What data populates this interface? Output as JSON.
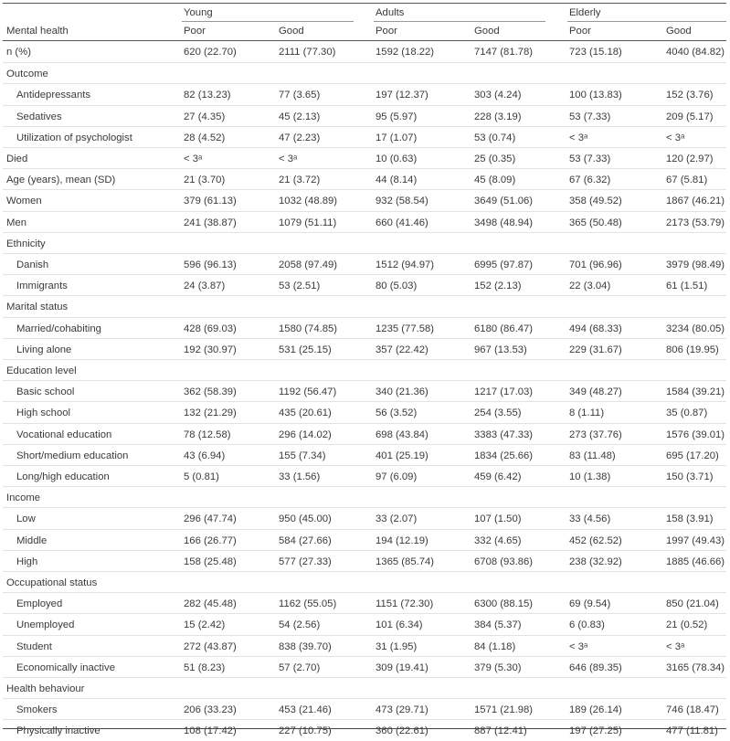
{
  "groups": [
    "Young",
    "Adults",
    "Elderly"
  ],
  "subheaders": [
    "Poor",
    "Good",
    "Poor",
    "Good",
    "Poor",
    "Good"
  ],
  "row_header": "Mental health",
  "footnote_mark": "a",
  "rows": [
    {
      "label": "n (%)",
      "type": "data",
      "cells": [
        "620 (22.70)",
        "2111 (77.30)",
        "1592 (18.22)",
        "7147 (81.78)",
        "723 (15.18)",
        "4040 (84.82)"
      ]
    },
    {
      "label": "Outcome",
      "type": "category",
      "cells": []
    },
    {
      "label": "Antidepressants",
      "type": "sub",
      "cells": [
        "82 (13.23)",
        "77 (3.65)",
        "197 (12.37)",
        "303 (4.24)",
        "100 (13.83)",
        "152 (3.76)"
      ]
    },
    {
      "label": "Sedatives",
      "type": "sub",
      "cells": [
        "27 (4.35)",
        "45 (2.13)",
        "95 (5.97)",
        "228 (3.19)",
        "53 (7.33)",
        "209 (5.17)"
      ]
    },
    {
      "label": "Utilization of psychologist",
      "type": "sub",
      "cells": [
        "28 (4.52)",
        "47 (2.23)",
        "17 (1.07)",
        "53 (0.74)",
        "< 3ᵃ",
        "< 3ᵃ"
      ]
    },
    {
      "label": "Died",
      "type": "data",
      "cells": [
        "< 3ᵃ",
        "< 3ᵃ",
        "10 (0.63)",
        "25 (0.35)",
        "53 (7.33)",
        "120 (2.97)"
      ]
    },
    {
      "label": "Age (years), mean (SD)",
      "type": "data",
      "cells": [
        "21 (3.70)",
        "21 (3.72)",
        "44 (8.14)",
        "45 (8.09)",
        "67 (6.32)",
        "67 (5.81)"
      ]
    },
    {
      "label": "Women",
      "type": "data",
      "cells": [
        "379 (61.13)",
        "1032 (48.89)",
        "932 (58.54)",
        "3649 (51.06)",
        "358 (49.52)",
        "1867 (46.21)"
      ]
    },
    {
      "label": "Men",
      "type": "data",
      "cells": [
        "241 (38.87)",
        "1079 (51.11)",
        "660 (41.46)",
        "3498 (48.94)",
        "365 (50.48)",
        "2173 (53.79)"
      ]
    },
    {
      "label": "Ethnicity",
      "type": "category",
      "cells": []
    },
    {
      "label": "Danish",
      "type": "sub",
      "cells": [
        "596 (96.13)",
        "2058 (97.49)",
        "1512 (94.97)",
        "6995 (97.87)",
        "701 (96.96)",
        "3979 (98.49)"
      ]
    },
    {
      "label": "Immigrants",
      "type": "sub",
      "cells": [
        "24 (3.87)",
        "53 (2.51)",
        "80 (5.03)",
        "152 (2.13)",
        "22 (3.04)",
        "61 (1.51)"
      ]
    },
    {
      "label": "Marital status",
      "type": "category",
      "cells": []
    },
    {
      "label": "Married/cohabiting",
      "type": "sub",
      "cells": [
        "428 (69.03)",
        "1580 (74.85)",
        "1235 (77.58)",
        "6180 (86.47)",
        "494 (68.33)",
        "3234 (80.05)"
      ]
    },
    {
      "label": "Living alone",
      "type": "sub",
      "cells": [
        "192 (30.97)",
        "531 (25.15)",
        "357 (22.42)",
        "967 (13.53)",
        "229 (31.67)",
        "806 (19.95)"
      ]
    },
    {
      "label": "Education level",
      "type": "category",
      "cells": []
    },
    {
      "label": "Basic school",
      "type": "sub",
      "cells": [
        "362 (58.39)",
        "1192 (56.47)",
        "340 (21.36)",
        "1217 (17.03)",
        "349 (48.27)",
        "1584 (39.21)"
      ]
    },
    {
      "label": "High school",
      "type": "sub",
      "cells": [
        "132 (21.29)",
        "435 (20.61)",
        "56 (3.52)",
        "254 (3.55)",
        "8 (1.11)",
        "35 (0.87)"
      ]
    },
    {
      "label": "Vocational education",
      "type": "sub",
      "cells": [
        "78 (12.58)",
        "296 (14.02)",
        "698 (43.84)",
        "3383 (47.33)",
        "273 (37.76)",
        "1576 (39.01)"
      ]
    },
    {
      "label": "Short/medium education",
      "type": "sub",
      "cells": [
        "43 (6.94)",
        "155 (7.34)",
        "401 (25.19)",
        "1834 (25.66)",
        "83 (11.48)",
        "695 (17.20)"
      ]
    },
    {
      "label": "Long/high education",
      "type": "sub",
      "cells": [
        "5 (0.81)",
        "33 (1.56)",
        "97 (6.09)",
        "459 (6.42)",
        "10 (1.38)",
        "150 (3.71)"
      ]
    },
    {
      "label": "Income",
      "type": "category",
      "cells": []
    },
    {
      "label": "Low",
      "type": "sub",
      "cells": [
        "296 (47.74)",
        "950 (45.00)",
        "33 (2.07)",
        "107 (1.50)",
        "33 (4.56)",
        "158 (3.91)"
      ]
    },
    {
      "label": "Middle",
      "type": "sub",
      "cells": [
        "166 (26.77)",
        "584 (27.66)",
        "194 (12.19)",
        "332 (4.65)",
        "452 (62.52)",
        "1997 (49.43)"
      ]
    },
    {
      "label": "High",
      "type": "sub",
      "cells": [
        "158 (25.48)",
        "577 (27.33)",
        "1365 (85.74)",
        "6708 (93.86)",
        "238 (32.92)",
        "1885 (46.66)"
      ]
    },
    {
      "label": "Occupational status",
      "type": "category",
      "cells": []
    },
    {
      "label": "Employed",
      "type": "sub",
      "cells": [
        "282 (45.48)",
        "1162 (55.05)",
        "1151 (72.30)",
        "6300 (88.15)",
        "69 (9.54)",
        "850 (21.04)"
      ]
    },
    {
      "label": "Unemployed",
      "type": "sub",
      "cells": [
        "15 (2.42)",
        "54 (2.56)",
        "101 (6.34)",
        "384 (5.37)",
        "6 (0.83)",
        "21 (0.52)"
      ]
    },
    {
      "label": "Student",
      "type": "sub",
      "cells": [
        "272 (43.87)",
        "838 (39.70)",
        "31 (1.95)",
        "84 (1.18)",
        "< 3ᵃ",
        "< 3ᵃ"
      ]
    },
    {
      "label": "Economically inactive",
      "type": "sub",
      "cells": [
        "51 (8.23)",
        "57 (2.70)",
        "309 (19.41)",
        "379 (5.30)",
        "646 (89.35)",
        "3165 (78.34)"
      ]
    },
    {
      "label": "Health behaviour",
      "type": "category",
      "cells": []
    },
    {
      "label": "Smokers",
      "type": "sub",
      "cells": [
        "206 (33.23)",
        "453 (21.46)",
        "473 (29.71)",
        "1571 (21.98)",
        "189 (26.14)",
        "746 (18.47)"
      ]
    },
    {
      "label": "Physically inactive",
      "type": "sub",
      "cells": [
        "108 (17.42)",
        "227 (10.75)",
        "360 (22.61)",
        "887 (12.41)",
        "197 (27.25)",
        "477 (11.81)"
      ]
    }
  ]
}
